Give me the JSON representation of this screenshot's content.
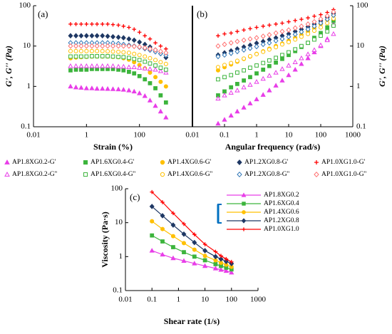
{
  "chart_data": [
    {
      "type": "scatter",
      "panel_label": "(a)",
      "xlabel": "Strain (%)",
      "ylabel": "G', G'' (Pa)",
      "log_x": true,
      "log_y": true,
      "xlim": [
        0.01,
        10000
      ],
      "xticks": [
        0.01,
        1,
        100
      ],
      "ylim": [
        0.1,
        100
      ],
      "yticks": [
        0.1,
        1,
        10,
        100
      ],
      "y_axis_side": "left",
      "x": [
        0.25,
        0.4,
        0.63,
        1,
        1.6,
        2.5,
        4,
        6.3,
        10,
        16,
        25,
        40,
        63,
        100,
        160,
        250,
        400,
        630,
        1000
      ],
      "series": [
        {
          "name": "AP1.8XG0.2-G'",
          "color": "#e83ee8",
          "marker": "triangle",
          "filled": true,
          "values": [
            1.0,
            0.95,
            0.93,
            0.9,
            0.9,
            0.88,
            0.88,
            0.87,
            0.86,
            0.85,
            0.83,
            0.8,
            0.75,
            0.68,
            0.58,
            0.45,
            0.33,
            0.24,
            0.17
          ]
        },
        {
          "name": "AP1.6XG0.4-G'",
          "color": "#3cb43c",
          "marker": "square",
          "filled": true,
          "values": [
            2.5,
            2.6,
            2.6,
            2.6,
            2.7,
            2.7,
            2.7,
            2.7,
            2.7,
            2.6,
            2.5,
            2.3,
            2.1,
            1.8,
            1.5,
            1.2,
            0.9,
            0.6,
            0.4
          ]
        },
        {
          "name": "AP1.4XG0.6-G'",
          "color": "#ffc000",
          "marker": "circle",
          "filled": true,
          "values": [
            5.0,
            5.2,
            5.3,
            5.4,
            5.5,
            5.5,
            5.5,
            5.5,
            5.4,
            5.3,
            5.0,
            4.6,
            4.0,
            3.4,
            2.8,
            2.2,
            1.7,
            1.3,
            1.0
          ]
        },
        {
          "name": "AP1.2XG0.8-G'",
          "color": "#1f3864",
          "marker": "diamond",
          "filled": true,
          "values": [
            18,
            18,
            18,
            18,
            18,
            18,
            18,
            17.5,
            17,
            16.5,
            16,
            15,
            14,
            12.5,
            11,
            9.5,
            8,
            6.5,
            5.2
          ]
        },
        {
          "name": "AP1.0XG1.0-G'",
          "color": "#ff0000",
          "marker": "plus",
          "filled": true,
          "values": [
            35,
            35,
            35,
            35,
            35,
            35,
            35,
            35,
            34,
            33,
            31,
            29,
            26,
            22,
            18,
            15,
            12,
            10,
            8.5
          ]
        },
        {
          "name": "AP1.8XG0.2-G''",
          "color": "#e83ee8",
          "marker": "triangle",
          "filled": false,
          "values": [
            3.2,
            3.2,
            3.2,
            3.2,
            3.2,
            3.2,
            3.2,
            3.2,
            3.2,
            3.1,
            3.1,
            3.0,
            3.0,
            2.9,
            2.8,
            2.7,
            2.6,
            2.4,
            2.2
          ]
        },
        {
          "name": "AP1.6XG0.4-G''",
          "color": "#3cb43c",
          "marker": "square",
          "filled": false,
          "values": [
            5.5,
            5.5,
            5.5,
            5.5,
            5.6,
            5.6,
            5.6,
            5.6,
            5.5,
            5.4,
            5.3,
            5.1,
            4.8,
            4.5,
            4.1,
            3.7,
            3.3,
            2.9,
            2.6
          ]
        },
        {
          "name": "AP1.4XG0.6-G''",
          "color": "#ffc000",
          "marker": "circle",
          "filled": false,
          "values": [
            7.5,
            7.5,
            7.5,
            7.5,
            7.5,
            7.5,
            7.5,
            7.4,
            7.3,
            7.2,
            7.0,
            6.8,
            6.4,
            6.0,
            5.5,
            5.0,
            4.5,
            4.0,
            3.6
          ]
        },
        {
          "name": "AP1.2XG0.8-G''",
          "color": "#2e75b6",
          "marker": "diamond",
          "filled": false,
          "values": [
            12,
            12,
            12,
            12,
            12,
            12,
            12,
            12,
            11.8,
            11.5,
            11,
            10.5,
            10,
            9.3,
            8.6,
            7.9,
            7.2,
            6.5,
            5.9
          ]
        },
        {
          "name": "AP1.0XG1.0-G''",
          "color": "#ff6f6f",
          "marker": "diamond",
          "filled": false,
          "values": [
            10,
            10,
            10,
            10,
            10,
            10,
            10,
            10,
            10,
            10,
            10,
            10,
            9.8,
            9.5,
            9,
            8.5,
            8,
            7.4,
            6.8
          ]
        }
      ]
    },
    {
      "type": "scatter",
      "panel_label": "(b)",
      "xlabel": "Angular frequency (rad/s)",
      "ylabel": "G', G'' (Pa)",
      "log_x": true,
      "log_y": true,
      "xlim": [
        0.01,
        1000
      ],
      "xticks": [
        0.01,
        0.1,
        1,
        10,
        100,
        1000
      ],
      "ylim": [
        0.1,
        100
      ],
      "yticks": [
        0.1,
        1,
        10,
        100
      ],
      "y_axis_side": "right",
      "x": [
        0.063,
        0.1,
        0.16,
        0.25,
        0.4,
        0.63,
        1,
        1.6,
        2.5,
        4,
        6.3,
        10,
        16,
        25,
        40,
        63,
        100,
        160,
        250
      ],
      "series": [
        {
          "name": "AP1.8XG0.2-G'",
          "color": "#e83ee8",
          "marker": "triangle",
          "filled": true,
          "values": [
            0.12,
            0.15,
            0.19,
            0.24,
            0.3,
            0.38,
            0.48,
            0.62,
            0.8,
            1.05,
            1.4,
            1.9,
            2.6,
            3.6,
            5,
            7,
            10,
            15,
            35
          ]
        },
        {
          "name": "AP1.6XG0.4-G'",
          "color": "#3cb43c",
          "marker": "square",
          "filled": true,
          "values": [
            0.6,
            0.75,
            0.95,
            1.15,
            1.4,
            1.7,
            2.1,
            2.6,
            3.2,
            3.9,
            4.8,
            6,
            7.5,
            9.5,
            12,
            16,
            21,
            29,
            42
          ]
        },
        {
          "name": "AP1.4XG0.6-G'",
          "color": "#ffc000",
          "marker": "circle",
          "filled": true,
          "values": [
            2.5,
            3,
            3.5,
            4.1,
            4.8,
            5.5,
            6.4,
            7.4,
            8.6,
            10,
            11.5,
            13.5,
            16,
            19,
            23,
            28,
            35,
            45,
            58
          ]
        },
        {
          "name": "AP1.2XG0.8-G'",
          "color": "#1f3864",
          "marker": "diamond",
          "filled": true,
          "values": [
            6,
            6.8,
            7.6,
            8.5,
            9.5,
            10.5,
            11.8,
            13,
            14.5,
            16,
            18,
            20,
            23,
            26,
            30,
            35,
            42,
            52,
            65
          ]
        },
        {
          "name": "AP1.0XG1.0-G'",
          "color": "#ff0000",
          "marker": "plus",
          "filled": true,
          "values": [
            18,
            20,
            21,
            23,
            25,
            27,
            29,
            31,
            33,
            35,
            37,
            40,
            43,
            46,
            50,
            55,
            60,
            68,
            80
          ]
        },
        {
          "name": "AP1.8XG0.2-G''",
          "color": "#e83ee8",
          "marker": "triangle",
          "filled": false,
          "values": [
            0.5,
            0.6,
            0.7,
            0.8,
            0.95,
            1.1,
            1.3,
            1.55,
            1.85,
            2.2,
            2.7,
            3.3,
            4,
            5,
            6.3,
            8,
            10.5,
            14,
            20
          ]
        },
        {
          "name": "AP1.6XG0.4-G''",
          "color": "#3cb43c",
          "marker": "square",
          "filled": false,
          "values": [
            1.5,
            1.7,
            1.9,
            2.2,
            2.5,
            2.9,
            3.3,
            3.8,
            4.4,
            5.1,
            6,
            7,
            8.3,
            10,
            12,
            14.5,
            18,
            23,
            32
          ]
        },
        {
          "name": "AP1.4XG0.6-G''",
          "color": "#ffc000",
          "marker": "circle",
          "filled": false,
          "values": [
            3,
            3.4,
            3.8,
            4.3,
            4.9,
            5.6,
            6.3,
            7.2,
            8.2,
            9.4,
            11,
            12.5,
            14.5,
            17,
            20,
            24,
            29,
            37,
            48
          ]
        },
        {
          "name": "AP1.2XG0.8-G''",
          "color": "#2e75b6",
          "marker": "diamond",
          "filled": false,
          "values": [
            5.5,
            6,
            6.6,
            7.3,
            8,
            8.8,
            9.7,
            11,
            12,
            13.5,
            15,
            17,
            19.5,
            22.5,
            26,
            31,
            37,
            46,
            58
          ]
        },
        {
          "name": "AP1.0XG1.0-G''",
          "color": "#ff6f6f",
          "marker": "diamond",
          "filled": false,
          "values": [
            10,
            11,
            12,
            13,
            14,
            15,
            16,
            17.5,
            19,
            21,
            23,
            25,
            28,
            31,
            35,
            40,
            47,
            56,
            70
          ]
        }
      ]
    },
    {
      "type": "line",
      "panel_label": "(c)",
      "xlabel": "Shear rate (1/s)",
      "ylabel": "Viscosity (Pa·s)",
      "log_x": true,
      "log_y": true,
      "xlim": [
        0.01,
        1000
      ],
      "xticks": [
        0.01,
        0.1,
        1,
        10,
        100,
        1000
      ],
      "ylim": [
        0.1,
        100
      ],
      "yticks": [
        0.1,
        1,
        10,
        100
      ],
      "y_axis_side": "left",
      "x": [
        0.1,
        0.25,
        0.63,
        1.6,
        4,
        10,
        25,
        40,
        63,
        100
      ],
      "series": [
        {
          "name": "AP1.8XG0.2",
          "color": "#e83ee8",
          "marker": "triangle",
          "filled": true,
          "values": [
            1.5,
            1.15,
            0.9,
            0.75,
            0.63,
            0.53,
            0.45,
            0.41,
            0.38,
            0.34
          ]
        },
        {
          "name": "AP1.6XG0.4",
          "color": "#3cb43c",
          "marker": "square",
          "filled": true,
          "values": [
            4.2,
            2.8,
            1.9,
            1.35,
            1.0,
            0.78,
            0.6,
            0.53,
            0.47,
            0.42
          ]
        },
        {
          "name": "AP1.4XG0.6",
          "color": "#ffc000",
          "marker": "circle",
          "filled": true,
          "values": [
            11,
            6.5,
            4.0,
            2.5,
            1.6,
            1.05,
            0.78,
            0.66,
            0.58,
            0.5
          ]
        },
        {
          "name": "AP1.2XG0.8",
          "color": "#1f3864",
          "marker": "diamond",
          "filled": true,
          "values": [
            30,
            16,
            8.5,
            4.6,
            2.6,
            1.5,
            1.0,
            0.85,
            0.72,
            0.62
          ]
        },
        {
          "name": "AP1.0XG1.0",
          "color": "#ff0000",
          "marker": "plus",
          "filled": true,
          "values": [
            80,
            40,
            19,
            9.2,
            4.5,
            2.3,
            1.4,
            1.05,
            0.85,
            0.7
          ]
        }
      ]
    }
  ]
}
